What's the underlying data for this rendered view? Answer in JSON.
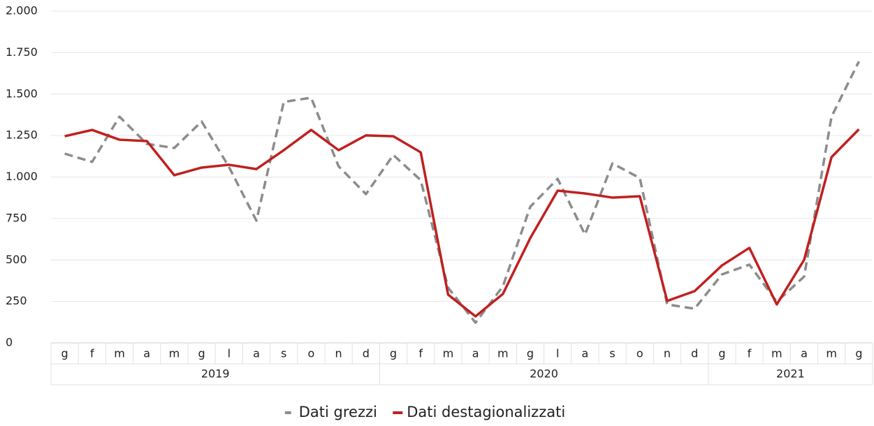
{
  "chart_data": {
    "type": "line",
    "groups": [
      {
        "name": "2019",
        "categories": [
          "g",
          "f",
          "m",
          "a",
          "m",
          "g",
          "l",
          "a",
          "s",
          "o",
          "n",
          "d"
        ]
      },
      {
        "name": "2020",
        "categories": [
          "g",
          "f",
          "m",
          "a",
          "m",
          "g",
          "l",
          "a",
          "s",
          "o",
          "n",
          "d"
        ]
      },
      {
        "name": "2021",
        "categories": [
          "g",
          "f",
          "m",
          "a",
          "m",
          "g"
        ]
      }
    ],
    "series": [
      {
        "name": "Dati grezzi",
        "color": "#8c8c8c",
        "dash": true,
        "values": [
          1141,
          1091,
          1364,
          1200,
          1175,
          1335,
          1060,
          737,
          1453,
          1478,
          1065,
          897,
          1133,
          981,
          333,
          122,
          341,
          821,
          989,
          653,
          1082,
          994,
          232,
          206,
          413,
          472,
          248,
          400,
          1364,
          1697
        ]
      },
      {
        "name": "Dati destagionalizzati",
        "color": "#c0201f",
        "dash": false,
        "values": [
          1246,
          1284,
          1225,
          1217,
          1011,
          1057,
          1074,
          1048,
          1162,
          1284,
          1162,
          1251,
          1246,
          1149,
          291,
          160,
          295,
          632,
          918,
          901,
          876,
          884,
          253,
          312,
          467,
          573,
          232,
          501,
          1120,
          1288
        ]
      }
    ],
    "ylim": [
      0,
      2000
    ],
    "yticks": [
      0,
      250,
      500,
      750,
      {
        "value": 1000,
        "label": "1.000"
      },
      {
        "value": 1250,
        "label": "1.250"
      },
      {
        "value": 1500,
        "label": "1.500"
      },
      {
        "value": 1750,
        "label": "1.750"
      },
      {
        "value": 2000,
        "label": "2.000"
      }
    ],
    "grid": true,
    "legend": "bottom"
  }
}
